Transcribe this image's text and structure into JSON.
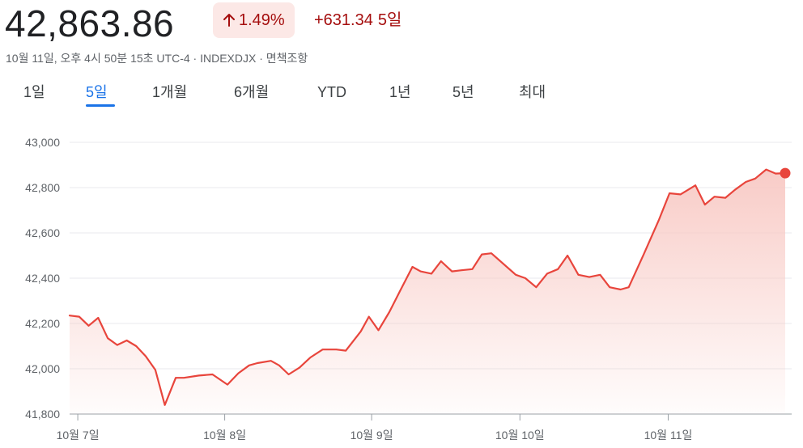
{
  "quote": {
    "price": "42,863.86",
    "percent_change": "1.49%",
    "change_value": "+631.34",
    "change_period": "5일",
    "subline": "10월 11일, 오후 4시 50분 15초 UTC-4 · INDEXDJX · 면책조항",
    "arrow_icon": "arrow-up-icon"
  },
  "tabs": [
    {
      "label": "1일"
    },
    {
      "label": "5일"
    },
    {
      "label": "1개월"
    },
    {
      "label": "6개월"
    },
    {
      "label": "YTD"
    },
    {
      "label": "1년"
    },
    {
      "label": "5년"
    },
    {
      "label": "최대"
    }
  ],
  "active_tab": "5일",
  "colors": {
    "line": "#e8453c",
    "fill_top": "#f8c9c4",
    "positive_text": "#a50e0e",
    "badge_bg": "#fce8e6",
    "active_tab": "#1a73e8",
    "grid": "#e8eaed"
  },
  "chart_data": {
    "type": "area",
    "ylim": [
      41800,
      43000
    ],
    "yticks": [
      "43,000",
      "42,800",
      "42,600",
      "42,400",
      "42,200",
      "42,000",
      "41,800"
    ],
    "ytick_values": [
      43000,
      42800,
      42600,
      42400,
      42200,
      42000,
      41800
    ],
    "xticks": [
      "10월 7일",
      "10월 8일",
      "10월 9일",
      "10월 10일",
      "10월 11일"
    ],
    "xtick_positions": [
      0.6,
      11.4,
      22.2,
      33.1,
      44.0
    ],
    "xlim": [
      0,
      52.6
    ],
    "grid": true,
    "legend": "none",
    "points": [
      [
        0,
        42235
      ],
      [
        0.7,
        42230
      ],
      [
        1.4,
        42190
      ],
      [
        2.1,
        42225
      ],
      [
        2.8,
        42135
      ],
      [
        3.5,
        42105
      ],
      [
        4.2,
        42125
      ],
      [
        4.9,
        42100
      ],
      [
        5.6,
        42055
      ],
      [
        6.3,
        41995
      ],
      [
        7.0,
        41840
      ],
      [
        7.8,
        41960
      ],
      [
        8.4,
        41960
      ],
      [
        9.5,
        41970
      ],
      [
        10.5,
        41975
      ],
      [
        11.6,
        41930
      ],
      [
        12.4,
        41980
      ],
      [
        13.2,
        42015
      ],
      [
        13.8,
        42025
      ],
      [
        14.8,
        42035
      ],
      [
        15.4,
        42015
      ],
      [
        16.1,
        41975
      ],
      [
        16.9,
        42005
      ],
      [
        17.7,
        42050
      ],
      [
        18.6,
        42085
      ],
      [
        19.6,
        42085
      ],
      [
        20.3,
        42080
      ],
      [
        21.4,
        42165
      ],
      [
        22.0,
        42230
      ],
      [
        22.7,
        42170
      ],
      [
        23.5,
        42250
      ],
      [
        24.3,
        42345
      ],
      [
        25.2,
        42450
      ],
      [
        25.8,
        42430
      ],
      [
        26.6,
        42420
      ],
      [
        27.3,
        42475
      ],
      [
        28.1,
        42430
      ],
      [
        28.8,
        42435
      ],
      [
        29.6,
        42440
      ],
      [
        30.3,
        42505
      ],
      [
        31.0,
        42510
      ],
      [
        32.8,
        42415
      ],
      [
        33.5,
        42400
      ],
      [
        34.3,
        42360
      ],
      [
        35.1,
        42420
      ],
      [
        35.9,
        42440
      ],
      [
        36.6,
        42500
      ],
      [
        37.4,
        42415
      ],
      [
        38.2,
        42405
      ],
      [
        39.0,
        42415
      ],
      [
        39.7,
        42360
      ],
      [
        40.5,
        42350
      ],
      [
        41.1,
        42360
      ],
      [
        42.2,
        42505
      ],
      [
        43.3,
        42655
      ],
      [
        44.1,
        42775
      ],
      [
        44.9,
        42770
      ],
      [
        46.0,
        42810
      ],
      [
        46.7,
        42725
      ],
      [
        47.4,
        42760
      ],
      [
        48.2,
        42755
      ],
      [
        48.9,
        42790
      ],
      [
        49.7,
        42825
      ],
      [
        50.4,
        42840
      ],
      [
        51.2,
        42880
      ],
      [
        51.9,
        42862
      ]
    ],
    "last_point": [
      52.6,
      42864
    ]
  }
}
